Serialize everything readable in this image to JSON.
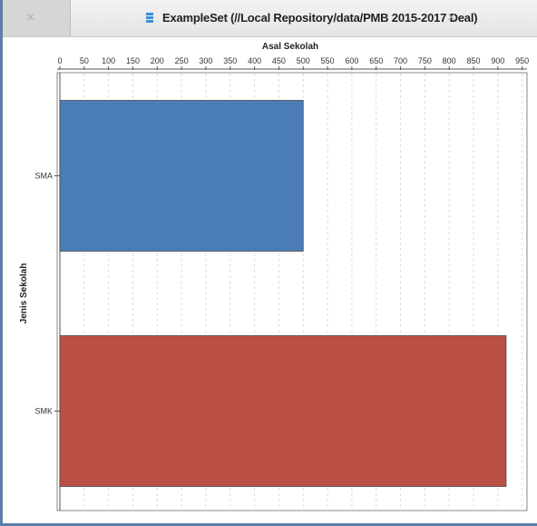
{
  "window": {
    "tab_inactive_close": "×",
    "tab_title": "ExampleSet (//Local Repository/data/PMB 2015-2017 Deal)",
    "tab_active_close": "×",
    "tab_icon": "table-icon"
  },
  "chart_data": {
    "type": "bar",
    "orientation": "horizontal",
    "xlabel": "Asal Sekolah",
    "ylabel": "Jenis Sekolah",
    "xlim": [
      0,
      960
    ],
    "xticks": [
      0,
      50,
      100,
      150,
      200,
      250,
      300,
      350,
      400,
      450,
      500,
      550,
      600,
      650,
      700,
      750,
      800,
      850,
      900,
      950
    ],
    "categories": [
      "SMA",
      "SMK"
    ],
    "values": [
      500,
      917
    ],
    "colors": [
      "#4a7db7",
      "#b94f45"
    ],
    "grid": "vertical dashed",
    "legend": "none"
  }
}
